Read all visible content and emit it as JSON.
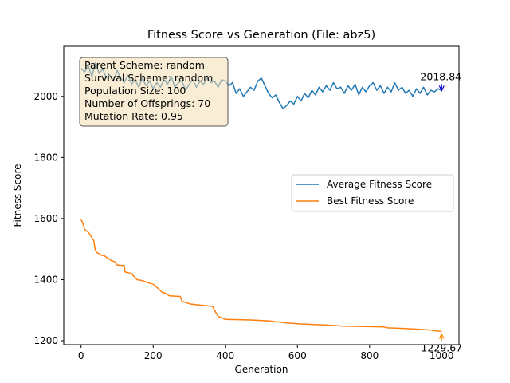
{
  "chart_data": {
    "type": "line",
    "title": "Fitness Score vs Generation (File: abz5)",
    "xlabel": "Generation",
    "ylabel": "Fitness Score",
    "xlim": [
      -48,
      1048
    ],
    "ylim": [
      1187,
      2164
    ],
    "xticks": [
      0,
      200,
      400,
      600,
      800,
      1000
    ],
    "yticks": [
      1200,
      1400,
      1600,
      1800,
      2000
    ],
    "grid": false,
    "legend_position": "center-right",
    "series": [
      {
        "name": "Average Fitness Score",
        "color": "#1f77b4",
        "points": [
          [
            0,
            2092
          ],
          [
            10,
            2080
          ],
          [
            20,
            2100
          ],
          [
            30,
            2065
          ],
          [
            40,
            2110
          ],
          [
            50,
            2075
          ],
          [
            60,
            2090
          ],
          [
            70,
            2060
          ],
          [
            80,
            2070
          ],
          [
            90,
            2050
          ],
          [
            100,
            2085
          ],
          [
            110,
            2060
          ],
          [
            120,
            2045
          ],
          [
            130,
            2070
          ],
          [
            140,
            2040
          ],
          [
            150,
            2055
          ],
          [
            160,
            2030
          ],
          [
            170,
            2060
          ],
          [
            180,
            2035
          ],
          [
            190,
            2050
          ],
          [
            200,
            2025
          ],
          [
            210,
            2045
          ],
          [
            220,
            2030
          ],
          [
            230,
            2055
          ],
          [
            240,
            2040
          ],
          [
            250,
            2065
          ],
          [
            260,
            2030
          ],
          [
            270,
            2045
          ],
          [
            280,
            2050
          ],
          [
            290,
            2020
          ],
          [
            300,
            2040
          ],
          [
            310,
            2055
          ],
          [
            320,
            2030
          ],
          [
            330,
            2050
          ],
          [
            340,
            2040
          ],
          [
            350,
            2060
          ],
          [
            360,
            2045
          ],
          [
            370,
            2050
          ],
          [
            380,
            2030
          ],
          [
            390,
            2055
          ],
          [
            400,
            2050
          ],
          [
            410,
            2035
          ],
          [
            420,
            2045
          ],
          [
            430,
            2010
          ],
          [
            440,
            2025
          ],
          [
            450,
            2000
          ],
          [
            460,
            2015
          ],
          [
            470,
            2030
          ],
          [
            480,
            2020
          ],
          [
            490,
            2050
          ],
          [
            500,
            2060
          ],
          [
            510,
            2035
          ],
          [
            520,
            2010
          ],
          [
            530,
            1995
          ],
          [
            540,
            2005
          ],
          [
            550,
            1980
          ],
          [
            560,
            1960
          ],
          [
            570,
            1970
          ],
          [
            580,
            1985
          ],
          [
            590,
            1975
          ],
          [
            600,
            2000
          ],
          [
            610,
            1985
          ],
          [
            620,
            2010
          ],
          [
            630,
            1995
          ],
          [
            640,
            2020
          ],
          [
            650,
            2005
          ],
          [
            660,
            2030
          ],
          [
            670,
            2015
          ],
          [
            680,
            2035
          ],
          [
            690,
            2020
          ],
          [
            700,
            2045
          ],
          [
            710,
            2025
          ],
          [
            720,
            2030
          ],
          [
            730,
            2010
          ],
          [
            740,
            2035
          ],
          [
            750,
            2020
          ],
          [
            760,
            2040
          ],
          [
            770,
            2005
          ],
          [
            780,
            2030
          ],
          [
            790,
            2015
          ],
          [
            800,
            2035
          ],
          [
            810,
            2045
          ],
          [
            820,
            2020
          ],
          [
            830,
            2035
          ],
          [
            840,
            2010
          ],
          [
            850,
            2030
          ],
          [
            860,
            2015
          ],
          [
            870,
            2045
          ],
          [
            880,
            2020
          ],
          [
            890,
            2030
          ],
          [
            900,
            2010
          ],
          [
            910,
            2020
          ],
          [
            920,
            2000
          ],
          [
            930,
            2025
          ],
          [
            940,
            2010
          ],
          [
            950,
            2030
          ],
          [
            960,
            2005
          ],
          [
            970,
            2020
          ],
          [
            980,
            2015
          ],
          [
            990,
            2025
          ],
          [
            1000,
            2019
          ]
        ]
      },
      {
        "name": "Best Fitness Score",
        "color": "#ff7f0e",
        "points": [
          [
            0,
            1596
          ],
          [
            5,
            1585
          ],
          [
            10,
            1565
          ],
          [
            20,
            1555
          ],
          [
            30,
            1538
          ],
          [
            35,
            1528
          ],
          [
            40,
            1495
          ],
          [
            45,
            1488
          ],
          [
            50,
            1485
          ],
          [
            55,
            1480
          ],
          [
            65,
            1478
          ],
          [
            75,
            1470
          ],
          [
            85,
            1462
          ],
          [
            95,
            1458
          ],
          [
            100,
            1448
          ],
          [
            110,
            1447
          ],
          [
            120,
            1446
          ],
          [
            122,
            1425
          ],
          [
            140,
            1420
          ],
          [
            155,
            1400
          ],
          [
            165,
            1398
          ],
          [
            175,
            1395
          ],
          [
            185,
            1390
          ],
          [
            200,
            1385
          ],
          [
            215,
            1370
          ],
          [
            225,
            1358
          ],
          [
            235,
            1355
          ],
          [
            245,
            1347
          ],
          [
            275,
            1345
          ],
          [
            280,
            1330
          ],
          [
            290,
            1325
          ],
          [
            305,
            1320
          ],
          [
            320,
            1318
          ],
          [
            345,
            1315
          ],
          [
            365,
            1312
          ],
          [
            375,
            1290
          ],
          [
            380,
            1280
          ],
          [
            390,
            1275
          ],
          [
            400,
            1270
          ],
          [
            470,
            1268
          ],
          [
            520,
            1265
          ],
          [
            570,
            1258
          ],
          [
            610,
            1255
          ],
          [
            700,
            1250
          ],
          [
            720,
            1248
          ],
          [
            840,
            1245
          ],
          [
            850,
            1242
          ],
          [
            900,
            1240
          ],
          [
            970,
            1235
          ],
          [
            985,
            1232
          ],
          [
            1000,
            1230
          ]
        ]
      }
    ],
    "annotations": [
      {
        "text": "2018.84",
        "x": 1000,
        "y": 2019,
        "color": "#0000cc"
      },
      {
        "text": "1229.67",
        "x": 1000,
        "y": 1230,
        "color": "#ff8c00"
      }
    ],
    "info_box": [
      "Parent Scheme: random",
      "Survival Scheme: random",
      "Population Size: 100",
      "Number of Offsprings: 70",
      "Mutation Rate: 0.95"
    ]
  }
}
